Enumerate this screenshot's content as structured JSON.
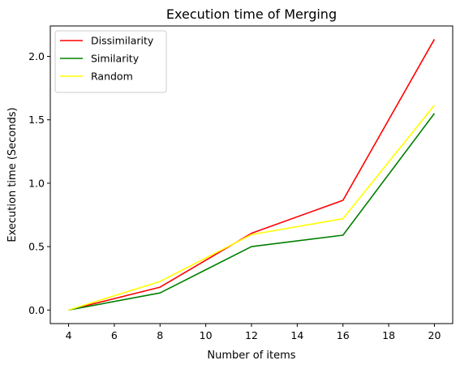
{
  "chart_data": {
    "type": "line",
    "title": "Execution time of Merging",
    "xlabel": "Number of items",
    "ylabel": "Execution time (Seconds)",
    "x": [
      4,
      8,
      12,
      16,
      20
    ],
    "xticks": [
      4,
      6,
      8,
      10,
      12,
      14,
      16,
      18,
      20
    ],
    "yticks": [
      0.0,
      0.5,
      1.0,
      1.5,
      2.0
    ],
    "xticklabels": [
      "4",
      "6",
      "8",
      "10",
      "12",
      "14",
      "16",
      "18",
      "20"
    ],
    "yticklabels": [
      "0.0",
      "0.5",
      "1.0",
      "1.5",
      "2.0"
    ],
    "xlim": [
      3.2,
      20.8
    ],
    "ylim": [
      -0.107,
      2.24
    ],
    "grid": false,
    "legend_position": "top-left",
    "series": [
      {
        "name": "Dissimilarity",
        "color": "#ff0000",
        "values": [
          0.0,
          0.18,
          0.605,
          0.865,
          2.135
        ]
      },
      {
        "name": "Similarity",
        "color": "#008000",
        "values": [
          0.0,
          0.135,
          0.5,
          0.59,
          1.55
        ]
      },
      {
        "name": "Random",
        "color": "#ffff00",
        "values": [
          0.0,
          0.225,
          0.595,
          0.72,
          1.615
        ]
      }
    ]
  }
}
